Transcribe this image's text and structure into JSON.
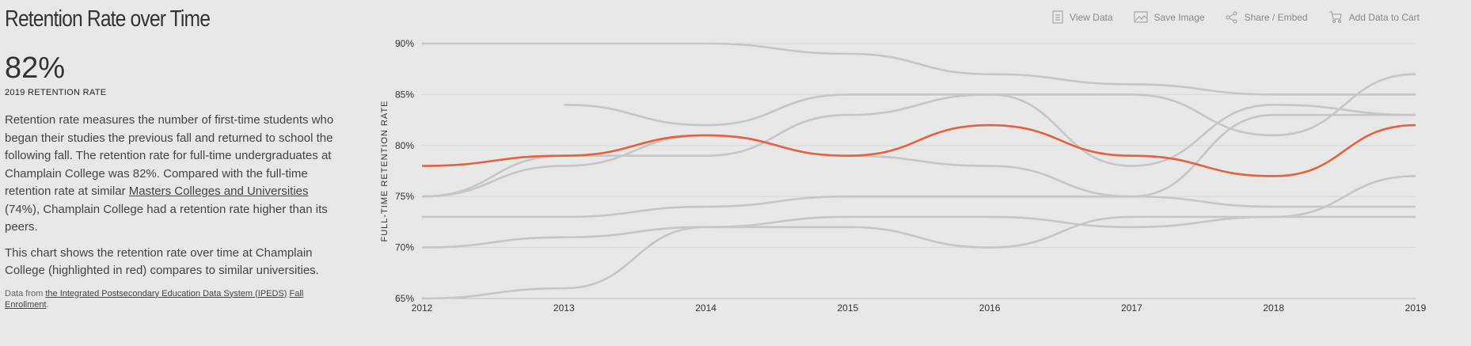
{
  "panel": {
    "title": "Retention Rate over Time",
    "headline_value": "82%",
    "headline_label": "2019 RETENTION RATE",
    "paragraph1": [
      "Retention rate measures the number of first-time students who began their studies the previous fall and returned to school the following fall. The retention rate for full-time undergraduates at Champlain College was 82%. Compared with the full-time retention rate at similar ",
      "Masters Colleges and Universities",
      " (74%), Champlain College had a retention rate higher than its peers."
    ],
    "paragraph2": "This chart shows the retention rate over time at Champlain College (highlighted in red) compares to similar universities.",
    "source": [
      "Data from ",
      "the Integrated Postsecondary Education Data System (IPEDS)",
      " ",
      "Fall Enrollment",
      "."
    ]
  },
  "toolbar": [
    "View Data",
    "Save Image",
    "Share / Embed",
    "Add Data to Cart"
  ],
  "chart_data": {
    "type": "line",
    "y_label": "FULL-TIME RETENTION RATE",
    "x": [
      2012,
      2013,
      2014,
      2015,
      2016,
      2017,
      2018,
      2019
    ],
    "xlim": [
      2012,
      2019
    ],
    "xticks": [
      2012,
      2013,
      2014,
      2015,
      2016,
      2017,
      2018,
      2019
    ],
    "ylim": [
      65,
      90
    ],
    "yticks": [
      {
        "value": 65,
        "label": "65%"
      },
      {
        "value": 70,
        "label": "70%"
      },
      {
        "value": 75,
        "label": "75%"
      },
      {
        "value": 80,
        "label": "80%"
      },
      {
        "value": 85,
        "label": "85%"
      },
      {
        "value": 90,
        "label": "90%"
      }
    ],
    "grid": true,
    "series": [
      {
        "color": "#c6c6c6",
        "values": [
          90,
          90,
          90,
          89,
          87,
          86,
          85,
          85
        ]
      },
      {
        "color": "#c6c6c6",
        "values": [
          null,
          84,
          82,
          85,
          85,
          85,
          81,
          87
        ]
      },
      {
        "color": "#c6c6c6",
        "values": [
          75,
          79,
          79,
          83,
          85,
          78,
          84,
          83
        ]
      },
      {
        "color": "#c6c6c6",
        "values": [
          75,
          78,
          81,
          79,
          78,
          75,
          83,
          83
        ]
      },
      {
        "color": "#c6c6c6",
        "values": [
          73,
          73,
          74,
          75,
          75,
          75,
          74,
          74
        ]
      },
      {
        "color": "#c6c6c6",
        "values": [
          70,
          71,
          72,
          72,
          70,
          73,
          73,
          73
        ]
      },
      {
        "color": "#c6c6c6",
        "values": [
          65,
          66,
          72,
          73,
          73,
          72,
          73,
          77
        ]
      },
      {
        "color": "#e8603c",
        "values": [
          78,
          79,
          81,
          79,
          82,
          79,
          77,
          82
        ]
      }
    ]
  }
}
